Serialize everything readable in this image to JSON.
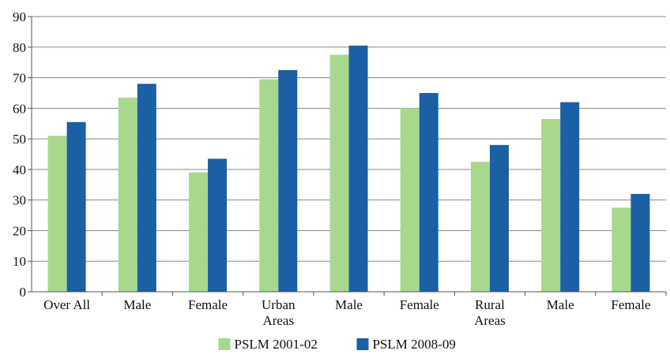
{
  "chart_data": {
    "type": "bar",
    "title": "",
    "xlabel": "",
    "ylabel": "",
    "ylim": [
      0,
      90
    ],
    "yticks": [
      0,
      10,
      20,
      30,
      40,
      50,
      60,
      70,
      80,
      90
    ],
    "grid": true,
    "legend_position": "bottom-center",
    "categories": [
      [
        "Over All"
      ],
      [
        "Male"
      ],
      [
        "Female"
      ],
      [
        "Urban",
        "Areas"
      ],
      [
        "Male"
      ],
      [
        "Female"
      ],
      [
        "Rural",
        "Areas"
      ],
      [
        "Male"
      ],
      [
        "Female"
      ]
    ],
    "series": [
      {
        "name": "PSLM 2001-02",
        "color": "#a8d88e",
        "values": [
          51,
          63.5,
          39,
          69.5,
          77.5,
          60,
          42.5,
          56.5,
          27.5
        ]
      },
      {
        "name": "PSLM 2008-09",
        "color": "#1b5fa5",
        "values": [
          55.5,
          68,
          43.5,
          72.5,
          80.5,
          65,
          48,
          62,
          32
        ]
      }
    ]
  }
}
